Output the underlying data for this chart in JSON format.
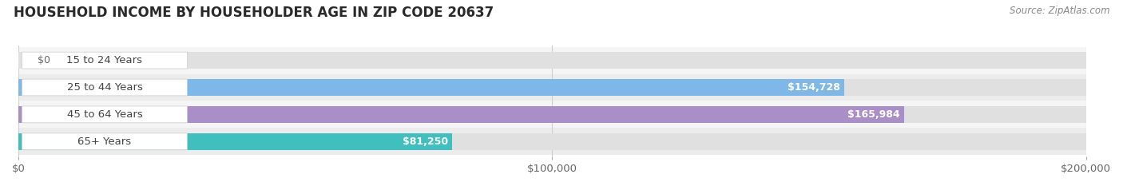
{
  "title": "HOUSEHOLD INCOME BY HOUSEHOLDER AGE IN ZIP CODE 20637",
  "source": "Source: ZipAtlas.com",
  "categories": [
    "15 to 24 Years",
    "25 to 44 Years",
    "45 to 64 Years",
    "65+ Years"
  ],
  "values": [
    0,
    154728,
    165984,
    81250
  ],
  "bar_colors": [
    "#f2a0a0",
    "#7db8e8",
    "#aa8ec8",
    "#40bfbf"
  ],
  "value_labels": [
    "$0",
    "$154,728",
    "$165,984",
    "$81,250"
  ],
  "xlim": [
    0,
    200000
  ],
  "xticks": [
    0,
    100000,
    200000
  ],
  "xtick_labels": [
    "$0",
    "$100,000",
    "$200,000"
  ],
  "title_fontsize": 12,
  "source_fontsize": 8.5,
  "label_fontsize": 9.5,
  "value_fontsize": 9,
  "bar_height": 0.62,
  "background_color": "#ffffff",
  "row_even_color": "#f5f5f5",
  "row_odd_color": "#ececec",
  "bar_bg_color": "#e0e0e0",
  "pill_bg": "#ffffff",
  "grid_color": "#d0d0d0",
  "label_color": "#444444",
  "value_label_color": "#ffffff",
  "zero_label_color": "#666666"
}
